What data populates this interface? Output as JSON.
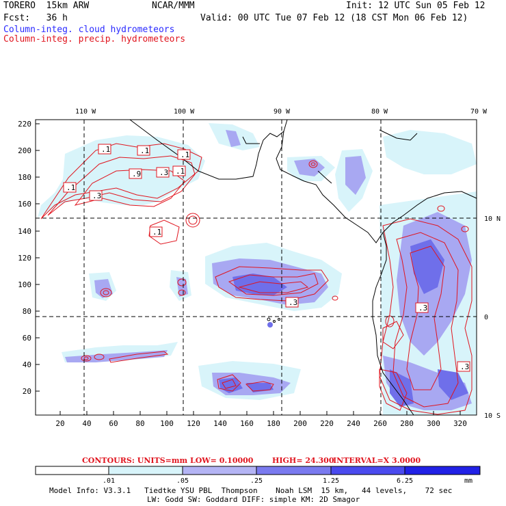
{
  "header": {
    "model_label": "TORERO  15km ARW",
    "org": "NCAR/MMM",
    "init": "Init: 12 UTC Sun 05 Feb 12",
    "fcst": "Fcst:   36 h",
    "valid": "Valid: 00 UTC Tue 07 Feb 12 (18 CST Mon 06 Feb 12)",
    "legend_cloud": "Column-integ. cloud hydrometeors",
    "legend_precip": "Column-integ. precip. hydrometeors",
    "legend_cloud_color": "#2a2aff",
    "legend_precip_color": "#e0141e"
  },
  "map": {
    "top_lon_labels": [
      "110 W",
      "100 W",
      "90 W",
      "80 W",
      "70 W"
    ],
    "right_lat_labels": [
      "10 N",
      "0",
      "10 S"
    ],
    "y_ticks": [
      "220",
      "200",
      "180",
      "160",
      "140",
      "120",
      "100",
      "80",
      "60",
      "40",
      "20"
    ],
    "x_ticks": [
      "20",
      "40",
      "60",
      "80",
      "100",
      "120",
      "140",
      "160",
      "180",
      "200",
      "220",
      "240",
      "260",
      "280",
      "300",
      "320"
    ],
    "contour_labels": [
      ".1",
      ".1",
      ".1",
      ".9",
      ".3",
      ".1",
      ".1",
      ".3",
      ".1",
      ".3",
      ".3",
      ".3"
    ]
  },
  "contours_caption": {
    "units": "CONTOURS:  UNITS=mm  LOW= 0.10000",
    "high": "HIGH=  24.300",
    "interval": "INTERVAL=X  3.0000"
  },
  "colorbar": {
    "labels": [
      ".01",
      ".05",
      ".25",
      "1.25",
      "6.25"
    ],
    "unit": "mm",
    "colors": [
      "#ffffff",
      "#d8f4fa",
      "#b4b4f4",
      "#7a7aef",
      "#4a4aee",
      "#2121e6"
    ]
  },
  "footer": {
    "line1": "Model Info: V3.3.1   Tiedtke YSU PBL  Thompson    Noah LSM  15 km,   44 levels,    72 sec",
    "line2": "LW: Godd SW: Goddard DIFF: simple KM: 2D Smagor"
  }
}
